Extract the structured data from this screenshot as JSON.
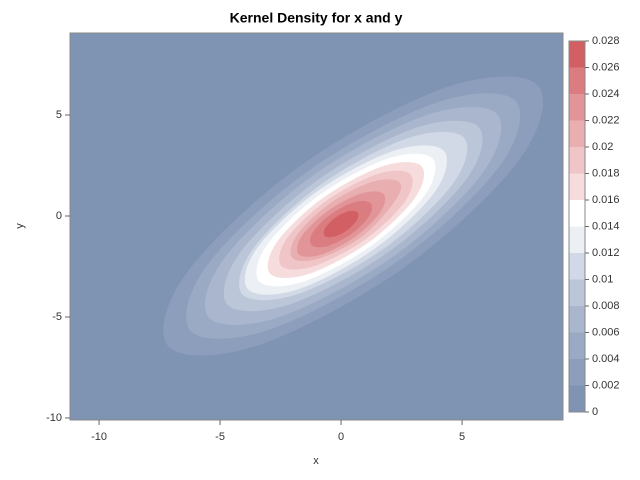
{
  "chart_data": {
    "type": "contour",
    "title": "Kernel Density for x and y",
    "xlabel": "x",
    "ylabel": "y",
    "xlim": [
      -11.2,
      9.17
    ],
    "ylim": [
      -10.1,
      9.06
    ],
    "xticks": [
      -10,
      -5,
      0,
      5
    ],
    "yticks": [
      -10,
      -5,
      0,
      5
    ],
    "colorbar": {
      "ticks": [
        0,
        0.002,
        0.004,
        0.006,
        0.008,
        0.01,
        0.012,
        0.014,
        0.016,
        0.018,
        0.02,
        0.022,
        0.024,
        0.026,
        0.028
      ],
      "colors": [
        "#7f93b3",
        "#8c9ebc",
        "#9aaac4",
        "#a9b6cd",
        "#bcc6d9",
        "#d2d9e6",
        "#ecf0f5",
        "#ffffff",
        "#f6dcdd",
        "#f0c5c7",
        "#e9aeb0",
        "#e29598",
        "#db7d80",
        "#d15f63"
      ]
    },
    "contours": [
      {
        "level": 0.002,
        "x": [
          8.1,
          4.35,
          -1.65,
          -6.39,
          -7.1,
          -3.35,
          2.65,
          7.39
        ],
        "y": [
          6.5,
          6.37,
          2.51,
          -2.83,
          -6.5,
          -6.37,
          -2.51,
          2.83
        ]
      },
      {
        "level": 0.004,
        "x": [
          7.19,
          3.9,
          -1.39,
          -5.56,
          -6.19,
          -2.9,
          2.39,
          6.56
        ],
        "y": [
          5.72,
          5.6,
          2.2,
          -2.48,
          -5.72,
          -5.6,
          -2.2,
          2.48
        ]
      },
      {
        "level": 0.006,
        "x": [
          6.43,
          3.5,
          -1.19,
          -4.88,
          -5.43,
          -2.5,
          2.19,
          5.88
        ],
        "y": [
          5.07,
          4.98,
          1.98,
          -2.18,
          -5.07,
          -4.98,
          -1.98,
          2.18
        ]
      },
      {
        "level": 0.008,
        "x": [
          5.67,
          3.09,
          -1.0,
          -4.21,
          -4.67,
          -2.09,
          2.0,
          5.21
        ],
        "y": [
          4.42,
          4.36,
          1.75,
          -1.88,
          -4.42,
          -4.36,
          -1.75,
          1.88
        ]
      },
      {
        "level": 0.01,
        "x": [
          5.06,
          2.78,
          -0.83,
          -3.66,
          -4.06,
          -1.78,
          1.83,
          4.66
        ],
        "y": [
          3.9,
          3.86,
          1.56,
          -1.66,
          -3.9,
          -3.86,
          -1.56,
          1.66
        ]
      },
      {
        "level": 0.012,
        "x": [
          4.23,
          2.2,
          -1.0,
          -3.5,
          -3.83,
          -1.8,
          1.4,
          3.9
        ],
        "y": [
          3.25,
          3.24,
          1.21,
          -1.64,
          -3.65,
          -3.64,
          -1.61,
          1.24
        ]
      },
      {
        "level": 0.014,
        "x": [
          3.77,
          1.96,
          -0.87,
          -3.08,
          -3.37,
          -1.56,
          1.27,
          3.48
        ],
        "y": [
          2.86,
          2.85,
          1.05,
          -1.47,
          -3.26,
          -3.25,
          -1.45,
          1.07
        ]
      },
      {
        "level": 0.016,
        "x": [
          3.32,
          1.74,
          -0.74,
          -2.66,
          -2.92,
          -1.34,
          1.14,
          3.06
        ],
        "y": [
          2.47,
          2.47,
          0.9,
          -1.31,
          -2.87,
          -2.87,
          -1.3,
          0.91
        ]
      },
      {
        "level": 0.018,
        "x": [
          2.86,
          1.51,
          -0.61,
          -2.25,
          -2.46,
          -1.11,
          1.01,
          2.65
        ],
        "y": [
          2.08,
          2.08,
          0.75,
          -1.14,
          -2.48,
          -2.48,
          -1.15,
          0.74
        ]
      },
      {
        "level": 0.02,
        "x": [
          2.4,
          1.28,
          -0.48,
          -1.84,
          -2.0,
          -0.88,
          0.88,
          2.24
        ],
        "y": [
          1.69,
          1.69,
          0.6,
          -0.97,
          -2.09,
          -2.09,
          -1.0,
          0.77
        ]
      },
      {
        "level": 0.022,
        "x": [
          1.75,
          0.85,
          -0.55,
          -1.63,
          -1.75,
          -0.85,
          0.55,
          1.63
        ],
        "y": [
          1.1,
          1.12,
          0.25,
          -1.0,
          -1.9,
          -1.92,
          -1.05,
          0.2
        ]
      },
      {
        "level": 0.024,
        "x": [
          1.22,
          0.56,
          -0.42,
          -1.16,
          -1.22,
          -0.56,
          0.42,
          1.16
        ],
        "y": [
          0.64,
          0.69,
          0.09,
          -0.79,
          -1.44,
          -1.49,
          -0.89,
          -0.01
        ]
      },
      {
        "level": 0.026,
        "x": [
          0.68,
          0.3,
          -0.26,
          -0.66,
          -0.68,
          -0.3,
          0.26,
          0.66
        ],
        "y": [
          0.19,
          0.23,
          -0.1,
          -0.61,
          -0.99,
          -1.03,
          -0.7,
          -0.19
        ]
      }
    ]
  }
}
